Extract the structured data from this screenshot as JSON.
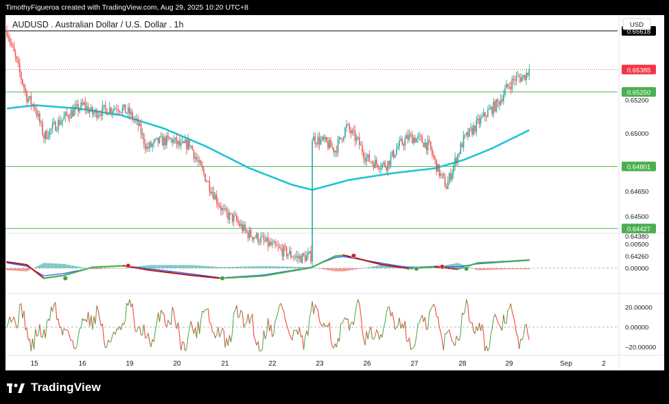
{
  "header": {
    "attribution": "TimothyFigueroa created with TradingView.com, Aug 29, 2025 10:20 UTC+8"
  },
  "chart": {
    "title": "AUDUSD . Australian Dollar / U.S. Dollar . 1h",
    "currency": "USD"
  },
  "footer": {
    "brand": "TradingView"
  },
  "colors": {
    "up": "#26a69a",
    "down": "#ef5350",
    "ma": "#1ec3d6",
    "hline": "#4caf50",
    "last_price": "#f23645",
    "macd": "#2962ff",
    "signal_up": "#4caf50",
    "signal_down": "#b71c1c"
  },
  "chart_data": {
    "type": "candlestick",
    "title": "AUDUSD . Australian Dollar / U.S. Dollar . 1h",
    "timeframe": "1h",
    "x_ticks": [
      "15",
      "16",
      "19",
      "20",
      "21",
      "22",
      "23",
      "26",
      "27",
      "28",
      "29",
      "Sep",
      "2"
    ],
    "price_axis_labels": [
      {
        "value": 0.652,
        "label": "0.65200"
      },
      {
        "value": 0.65,
        "label": "0.65000"
      },
      {
        "value": 0.6465,
        "label": "0.64650"
      },
      {
        "value": 0.645,
        "label": "0.64500"
      },
      {
        "value": 0.6438,
        "label": "0.64380"
      },
      {
        "value": 0.6426,
        "label": "0.64260"
      }
    ],
    "horizontal_levels": [
      {
        "value": 0.65618,
        "label": "0.65618",
        "color": "#000000"
      },
      {
        "value": 0.6525,
        "label": "0.65250",
        "color": "#4caf50"
      },
      {
        "value": 0.64801,
        "label": "0.64801",
        "color": "#4caf50"
      },
      {
        "value": 0.64427,
        "label": "0.64427",
        "color": "#4caf50"
      }
    ],
    "last_price": {
      "value": 0.65385,
      "label": "0.65385"
    },
    "close_path": [
      [
        0,
        0.6562
      ],
      [
        6,
        0.6545
      ],
      [
        14,
        0.6522
      ],
      [
        20,
        0.6515
      ],
      [
        26,
        0.6498
      ],
      [
        34,
        0.6505
      ],
      [
        44,
        0.6512
      ],
      [
        54,
        0.6517
      ],
      [
        60,
        0.6512
      ],
      [
        68,
        0.6514
      ],
      [
        78,
        0.6516
      ],
      [
        86,
        0.6512
      ],
      [
        92,
        0.6505
      ],
      [
        98,
        0.6491
      ],
      [
        106,
        0.6495
      ],
      [
        116,
        0.6496
      ],
      [
        122,
        0.6492
      ],
      [
        128,
        0.6494
      ],
      [
        134,
        0.6482
      ],
      [
        140,
        0.6472
      ],
      [
        146,
        0.6462
      ],
      [
        152,
        0.6452
      ],
      [
        160,
        0.6448
      ],
      [
        168,
        0.644
      ],
      [
        176,
        0.6437
      ],
      [
        186,
        0.6432
      ],
      [
        196,
        0.6428
      ],
      [
        204,
        0.6425
      ],
      [
        213,
        0.6426
      ],
      [
        214,
        0.6497
      ],
      [
        222,
        0.6495
      ],
      [
        230,
        0.649
      ],
      [
        238,
        0.6504
      ],
      [
        246,
        0.6495
      ],
      [
        252,
        0.6485
      ],
      [
        258,
        0.6482
      ],
      [
        266,
        0.6481
      ],
      [
        274,
        0.6492
      ],
      [
        282,
        0.6498
      ],
      [
        290,
        0.6496
      ],
      [
        296,
        0.6492
      ],
      [
        302,
        0.6478
      ],
      [
        308,
        0.6468
      ],
      [
        314,
        0.6483
      ],
      [
        320,
        0.6496
      ],
      [
        328,
        0.6504
      ],
      [
        336,
        0.6512
      ],
      [
        344,
        0.6518
      ],
      [
        350,
        0.6527
      ],
      [
        356,
        0.6533
      ],
      [
        362,
        0.6534
      ],
      [
        366,
        0.6538
      ]
    ],
    "moving_average_path": [
      [
        0,
        0.6515
      ],
      [
        20,
        0.6517
      ],
      [
        50,
        0.6515
      ],
      [
        80,
        0.6511
      ],
      [
        110,
        0.6503
      ],
      [
        140,
        0.6492
      ],
      [
        170,
        0.6479
      ],
      [
        200,
        0.6469
      ],
      [
        214,
        0.6466
      ],
      [
        240,
        0.6472
      ],
      [
        270,
        0.6476
      ],
      [
        300,
        0.6479
      ],
      [
        320,
        0.6484
      ],
      [
        340,
        0.6491
      ],
      [
        366,
        0.6502
      ]
    ],
    "macd": {
      "axis_labels": [
        {
          "value": 0.005,
          "label": "0.00500"
        },
        {
          "value": 0,
          "label": "0.00000"
        }
      ],
      "macd_path": [
        [
          0,
          0.0011
        ],
        [
          14,
          0.0004
        ],
        [
          26,
          -0.0016
        ],
        [
          40,
          -0.0011
        ],
        [
          60,
          0.0001
        ],
        [
          82,
          0.0005
        ],
        [
          100,
          -0.0001
        ],
        [
          130,
          -0.0012
        ],
        [
          150,
          -0.002
        ],
        [
          180,
          -0.0014
        ],
        [
          213,
          0.0002
        ],
        [
          230,
          0.0022
        ],
        [
          236,
          0.0024
        ],
        [
          250,
          0.0017
        ],
        [
          262,
          0.0011
        ],
        [
          282,
          0.0001
        ],
        [
          300,
          0.0004
        ],
        [
          316,
          0.0003
        ],
        [
          330,
          0.0009
        ],
        [
          350,
          0.0013
        ],
        [
          366,
          0.0016
        ]
      ],
      "signal_path": [
        [
          0,
          0.0013
        ],
        [
          14,
          0.0007
        ],
        [
          26,
          -0.0021
        ],
        [
          40,
          -0.0015
        ],
        [
          60,
          0.0002
        ],
        [
          82,
          0.0005
        ],
        [
          100,
          -0.0004
        ],
        [
          130,
          -0.0015
        ],
        [
          150,
          -0.0021
        ],
        [
          180,
          -0.0016
        ],
        [
          213,
          0.0001
        ],
        [
          230,
          0.0025
        ],
        [
          236,
          0.0027
        ],
        [
          250,
          0.0017
        ],
        [
          262,
          0.0008
        ],
        [
          282,
          -0.0001
        ],
        [
          300,
          0.0003
        ],
        [
          316,
          -0.0002
        ],
        [
          330,
          0.0011
        ],
        [
          350,
          0.0014
        ],
        [
          366,
          0.0017
        ]
      ],
      "cross_markers": [
        {
          "x": 41,
          "value": -0.0021,
          "type": "bullish"
        },
        {
          "x": 85,
          "value": 0.0005,
          "type": "bearish"
        },
        {
          "x": 151,
          "value": -0.0021,
          "type": "bullish"
        },
        {
          "x": 243,
          "value": 0.0026,
          "type": "bearish"
        },
        {
          "x": 287,
          "value": -0.0001,
          "type": "bullish"
        },
        {
          "x": 305,
          "value": 0.0003,
          "type": "bearish"
        },
        {
          "x": 322,
          "value": -0.0001,
          "type": "bullish"
        }
      ]
    },
    "oscillator": {
      "axis_labels": [
        {
          "value": 20,
          "label": "20.00000"
        },
        {
          "value": 0,
          "label": "0.00000"
        },
        {
          "value": -20,
          "label": "−20.00000"
        }
      ],
      "range": [
        -25,
        30
      ]
    }
  }
}
